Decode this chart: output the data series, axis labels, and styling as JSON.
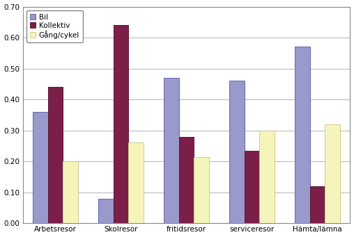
{
  "categories": [
    "Arbetsresor",
    "Skolresor",
    "fritidsresor",
    "serviceresor",
    "Hämta/lämna"
  ],
  "series": {
    "Bil": [
      0.36,
      0.08,
      0.47,
      0.46,
      0.57
    ],
    "Kollektiv": [
      0.44,
      0.64,
      0.28,
      0.235,
      0.12
    ],
    "Gång/cykel": [
      0.2,
      0.26,
      0.215,
      0.3,
      0.32
    ]
  },
  "legend_labels": [
    "Bil",
    "Kollektiv",
    "Gång/cykel"
  ],
  "bar_colors": {
    "Bil": "#9999cc",
    "Kollektiv": "#7b1f4a",
    "Gång/cykel": "#f5f5bb"
  },
  "bar_edgecolors": {
    "Bil": "#6666aa",
    "Kollektiv": "#5a1535",
    "Gång/cykel": "#cccc88"
  },
  "ylim": [
    0.0,
    0.7
  ],
  "yticks": [
    0.0,
    0.1,
    0.2,
    0.3,
    0.4,
    0.5,
    0.6,
    0.7
  ],
  "background_color": "#ffffff",
  "grid_color": "#bbbbbb",
  "bar_width": 0.23,
  "legend_fontsize": 7.5,
  "tick_fontsize": 7.5,
  "figure_facecolor": "#ffffff",
  "spine_color": "#888888"
}
